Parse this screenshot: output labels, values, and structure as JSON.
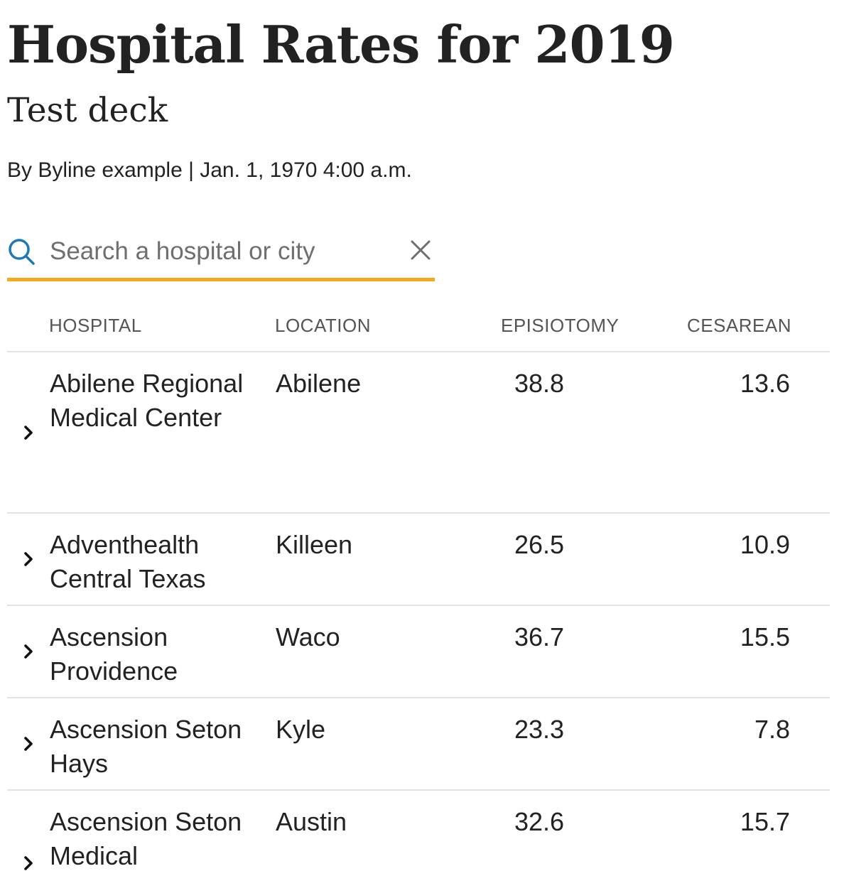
{
  "headline": "Hospital Rates for 2019",
  "deck": "Test deck",
  "byline": "By Byline example | Jan. 1, 1970 4:00 a.m.",
  "search": {
    "placeholder": "Search a hospital or city",
    "value": "",
    "underline_color": "#f5a91b",
    "icon_color": "#1f78b4",
    "search_icon": "search-icon",
    "clear_icon": "close-icon"
  },
  "table": {
    "headers": {
      "hospital": "HOSPITAL",
      "location": "LOCATION",
      "episiotomy": "EPISIOTOMY",
      "cesarean": "CESAREAN"
    },
    "rows": [
      {
        "hospital": "Abilene Regional Medical Center",
        "location": "Abilene",
        "episiotomy": "38.8",
        "cesarean": "13.6"
      },
      {
        "hospital": "Adventhealth Central Texas",
        "location": "Killeen",
        "episiotomy": "26.5",
        "cesarean": "10.9"
      },
      {
        "hospital": "Ascension Providence",
        "location": "Waco",
        "episiotomy": "36.7",
        "cesarean": "15.5"
      },
      {
        "hospital": "Ascension Seton Hays",
        "location": "Kyle",
        "episiotomy": "23.3",
        "cesarean": "7.8"
      },
      {
        "hospital": "Ascension Seton Medical",
        "location": "Austin",
        "episiotomy": "32.6",
        "cesarean": "15.7"
      }
    ]
  }
}
